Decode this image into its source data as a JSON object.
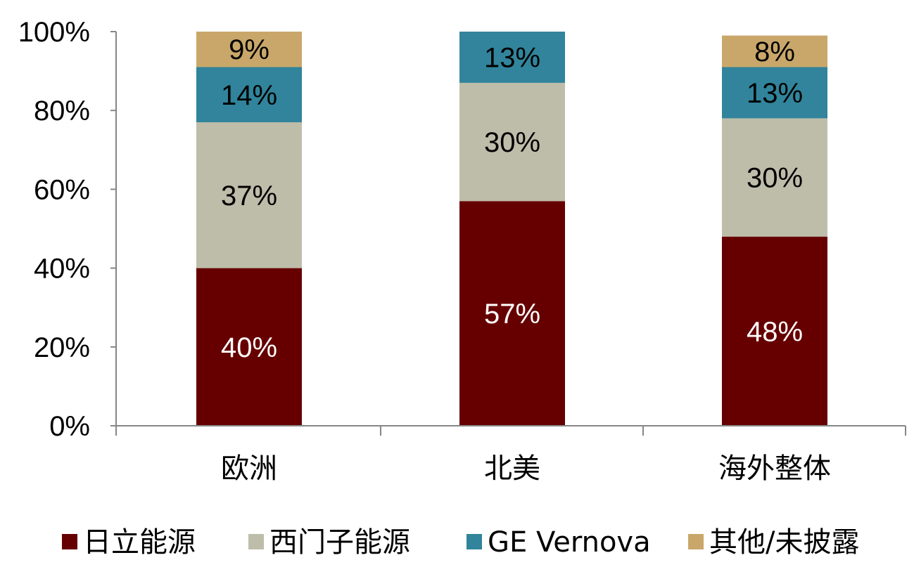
{
  "chart_data": {
    "type": "bar",
    "stacked": true,
    "categories": [
      "欧洲",
      "北美",
      "海外整体"
    ],
    "series": [
      {
        "name": "日立能源",
        "values": [
          40,
          57,
          48
        ],
        "labels": [
          "40%",
          "57%",
          "48%"
        ],
        "color": "#660000",
        "label_color": "#ffffff"
      },
      {
        "name": "西门子能源",
        "values": [
          37,
          30,
          30
        ],
        "labels": [
          "37%",
          "30%",
          "30%"
        ],
        "color": "#BEBDAA",
        "label_color": "#000000"
      },
      {
        "name": "GE Vernova",
        "values": [
          14,
          13,
          13
        ],
        "labels": [
          "14%",
          "13%",
          "13%"
        ],
        "color": "#31849B",
        "label_color": "#000000"
      },
      {
        "name": "其他/未披露",
        "values": [
          9,
          0,
          8
        ],
        "labels": [
          "9%",
          "",
          "8%"
        ],
        "color": "#C9A76A",
        "label_color": "#000000"
      }
    ],
    "yticks": [
      "0%",
      "20%",
      "40%",
      "60%",
      "80%",
      "100%"
    ],
    "ylim": [
      0,
      100
    ],
    "title": "",
    "xlabel": "",
    "ylabel": "",
    "grid": false,
    "legend_position": "bottom"
  }
}
